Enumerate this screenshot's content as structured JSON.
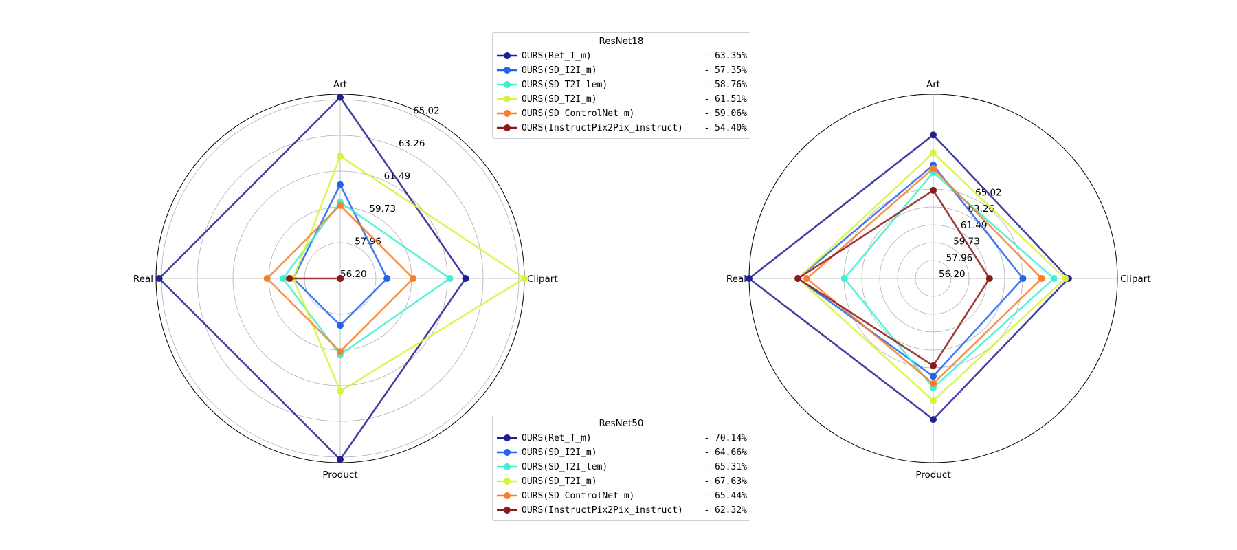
{
  "chart_data": [
    {
      "type": "radar",
      "categories": [
        "Art",
        "Clipart",
        "Product",
        "Real"
      ],
      "ticks": [
        "56.20",
        "57.96",
        "59.73",
        "61.49",
        "63.26",
        "65.02"
      ],
      "rlim": [
        54.4,
        66.0
      ],
      "grid": true,
      "legend": {
        "title": "ResNet18",
        "placement": "top-right",
        "entries": [
          {
            "name": "OURS(Ret_T_m)",
            "value": "- 63.35%"
          },
          {
            "name": "OURS(SD_I2I_m)",
            "value": "- 57.35%"
          },
          {
            "name": "OURS(SD_T2I_lem)",
            "value": "- 58.76%"
          },
          {
            "name": "OURS(SD_T2I_m)",
            "value": "- 61.51%"
          },
          {
            "name": "OURS(SD_ControlNet_m)",
            "value": "- 59.06%"
          },
          {
            "name": "OURS(InstructPix2Pix_instruct)",
            "value": "- 54.40%"
          }
        ]
      },
      "series": [
        {
          "name": "OURS(Ret_T_m)",
          "color": "#1f1f8f",
          "values": [
            65.8,
            62.3,
            65.8,
            65.8
          ]
        },
        {
          "name": "OURS(SD_I2I_m)",
          "color": "#2563eb",
          "values": [
            60.3,
            57.35,
            57.35,
            57.35
          ]
        },
        {
          "name": "OURS(SD_T2I_lem)",
          "color": "#3ff0d0",
          "values": [
            59.2,
            61.3,
            59.2,
            58.0
          ]
        },
        {
          "name": "OURS(SD_T2I_m)",
          "color": "#d6f53a",
          "values": [
            62.1,
            66.0,
            61.5,
            57.35
          ]
        },
        {
          "name": "OURS(SD_ControlNet_m)",
          "color": "#f57f2a",
          "values": [
            59.0,
            59.0,
            59.0,
            59.0
          ]
        },
        {
          "name": "OURS(InstructPix2Pix_instruct)",
          "color": "#8b1a1a",
          "values": [
            54.4,
            54.4,
            54.4,
            57.6
          ]
        }
      ]
    },
    {
      "type": "radar",
      "categories": [
        "Art",
        "Clipart",
        "Product",
        "Real"
      ],
      "ticks": [
        "56.20",
        "57.96",
        "59.73",
        "61.49",
        "63.26",
        "65.02"
      ],
      "rlim": [
        54.4,
        77.0
      ],
      "grid": true,
      "legend": {
        "title": "ResNet50",
        "placement": "bottom-right",
        "entries": [
          {
            "name": "OURS(Ret_T_m)",
            "value": "- 70.14%"
          },
          {
            "name": "OURS(SD_I2I_m)",
            "value": "- 64.66%"
          },
          {
            "name": "OURS(SD_T2I_lem)",
            "value": "- 65.31%"
          },
          {
            "name": "OURS(SD_T2I_m)",
            "value": "- 67.63%"
          },
          {
            "name": "OURS(SD_ControlNet_m)",
            "value": "- 65.44%"
          },
          {
            "name": "OURS(InstructPix2Pix_instruct)",
            "value": "- 62.32%"
          }
        ]
      },
      "series": [
        {
          "name": "OURS(Ret_T_m)",
          "color": "#1f1f8f",
          "values": [
            72.0,
            71.0,
            71.7,
            77.0
          ]
        },
        {
          "name": "OURS(SD_I2I_m)",
          "color": "#2563eb",
          "values": [
            68.3,
            65.4,
            66.4,
            71.0
          ]
        },
        {
          "name": "OURS(SD_T2I_lem)",
          "color": "#3ff0d0",
          "values": [
            67.4,
            69.2,
            67.8,
            65.3
          ]
        },
        {
          "name": "OURS(SD_T2I_m)",
          "color": "#d6f53a",
          "values": [
            69.8,
            70.6,
            69.4,
            71.0
          ]
        },
        {
          "name": "OURS(SD_ControlNet_m)",
          "color": "#f57f2a",
          "values": [
            67.9,
            67.7,
            67.3,
            69.9
          ]
        },
        {
          "name": "OURS(InstructPix2Pix_instruct)",
          "color": "#8b1a1a",
          "values": [
            65.2,
            61.3,
            65.1,
            71.0
          ]
        }
      ]
    }
  ]
}
